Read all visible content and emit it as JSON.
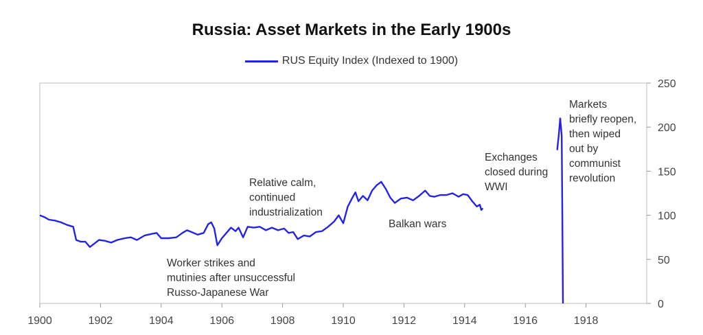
{
  "chart_data": {
    "type": "line",
    "title": "Russia: Asset Markets in the Early 1900s",
    "xlabel": "",
    "ylabel": "",
    "xlim": [
      1900,
      1920
    ],
    "ylim": [
      0,
      250
    ],
    "grid": false,
    "legend_position": "top-center",
    "x_ticks": [
      "1900",
      "1902",
      "1904",
      "1906",
      "1908",
      "1910",
      "1912",
      "1914",
      "1916",
      "1918"
    ],
    "y_ticks": [
      "0",
      "50",
      "100",
      "150",
      "200",
      "250"
    ],
    "series": [
      {
        "name": "RUS Equity Index (Indexed to 1900)",
        "color": "#2323e6",
        "segments": [
          [
            [
              1900.0,
              100
            ],
            [
              1900.15,
              98
            ],
            [
              1900.3,
              95
            ],
            [
              1900.5,
              94
            ],
            [
              1900.7,
              92
            ],
            [
              1900.9,
              89
            ],
            [
              1901.1,
              87
            ],
            [
              1901.2,
              72
            ],
            [
              1901.35,
              70
            ],
            [
              1901.5,
              70
            ],
            [
              1901.65,
              64
            ],
            [
              1901.8,
              68
            ],
            [
              1901.95,
              72
            ],
            [
              1902.15,
              71
            ],
            [
              1902.35,
              69
            ],
            [
              1902.55,
              72
            ],
            [
              1902.8,
              74
            ],
            [
              1903.0,
              75
            ],
            [
              1903.2,
              72
            ],
            [
              1903.45,
              77
            ],
            [
              1903.7,
              79
            ],
            [
              1903.85,
              80
            ],
            [
              1904.0,
              74
            ],
            [
              1904.25,
              74
            ],
            [
              1904.5,
              75
            ],
            [
              1904.7,
              80
            ],
            [
              1904.85,
              83
            ],
            [
              1905.0,
              81
            ],
            [
              1905.2,
              78
            ],
            [
              1905.4,
              80
            ],
            [
              1905.55,
              90
            ],
            [
              1905.65,
              92
            ],
            [
              1905.75,
              85
            ],
            [
              1905.85,
              66
            ],
            [
              1906.0,
              74
            ],
            [
              1906.15,
              80
            ],
            [
              1906.3,
              86
            ],
            [
              1906.45,
              82
            ],
            [
              1906.55,
              86
            ],
            [
              1906.7,
              75
            ],
            [
              1906.85,
              87
            ],
            [
              1907.05,
              86
            ],
            [
              1907.25,
              87
            ],
            [
              1907.45,
              83
            ],
            [
              1907.65,
              86
            ],
            [
              1907.85,
              83
            ],
            [
              1908.05,
              85
            ],
            [
              1908.2,
              80
            ],
            [
              1908.35,
              81
            ],
            [
              1908.5,
              73
            ],
            [
              1908.7,
              77
            ],
            [
              1908.9,
              76
            ],
            [
              1909.1,
              81
            ],
            [
              1909.3,
              82
            ],
            [
              1909.5,
              87
            ],
            [
              1909.7,
              93
            ],
            [
              1909.85,
              100
            ],
            [
              1910.0,
              91
            ],
            [
              1910.15,
              110
            ],
            [
              1910.3,
              120
            ],
            [
              1910.4,
              126
            ],
            [
              1910.5,
              116
            ],
            [
              1910.65,
              122
            ],
            [
              1910.8,
              117
            ],
            [
              1910.95,
              128
            ],
            [
              1911.1,
              134
            ],
            [
              1911.25,
              138
            ],
            [
              1911.4,
              130
            ],
            [
              1911.55,
              120
            ],
            [
              1911.7,
              114
            ],
            [
              1911.9,
              119
            ],
            [
              1912.1,
              120
            ],
            [
              1912.3,
              117
            ],
            [
              1912.5,
              122
            ],
            [
              1912.7,
              128
            ],
            [
              1912.85,
              122
            ],
            [
              1913.0,
              121
            ],
            [
              1913.2,
              123
            ],
            [
              1913.4,
              123
            ],
            [
              1913.6,
              125
            ],
            [
              1913.8,
              121
            ],
            [
              1913.95,
              124
            ],
            [
              1914.1,
              123
            ],
            [
              1914.25,
              116
            ],
            [
              1914.4,
              110
            ],
            [
              1914.5,
              112
            ],
            [
              1914.55,
              106
            ],
            [
              1914.6,
              108
            ]
          ],
          [
            [
              1917.05,
              174
            ],
            [
              1917.1,
              190
            ],
            [
              1917.15,
              210
            ],
            [
              1917.2,
              190
            ],
            [
              1917.22,
              100
            ],
            [
              1917.24,
              0
            ]
          ]
        ]
      }
    ],
    "annotations": [
      {
        "lines": [
          "Worker strikes and",
          "mutinies after unsuccessful",
          "Russo-Japanese War"
        ]
      },
      {
        "lines": [
          "Relative calm,",
          "continued",
          "industrialization"
        ]
      },
      {
        "lines": [
          "Balkan wars"
        ]
      },
      {
        "lines": [
          "Exchanges",
          "closed during",
          "WWI"
        ]
      },
      {
        "lines": [
          "Markets",
          "briefly reopen,",
          "then wiped",
          "out by",
          "communist",
          "revolution"
        ]
      }
    ]
  }
}
